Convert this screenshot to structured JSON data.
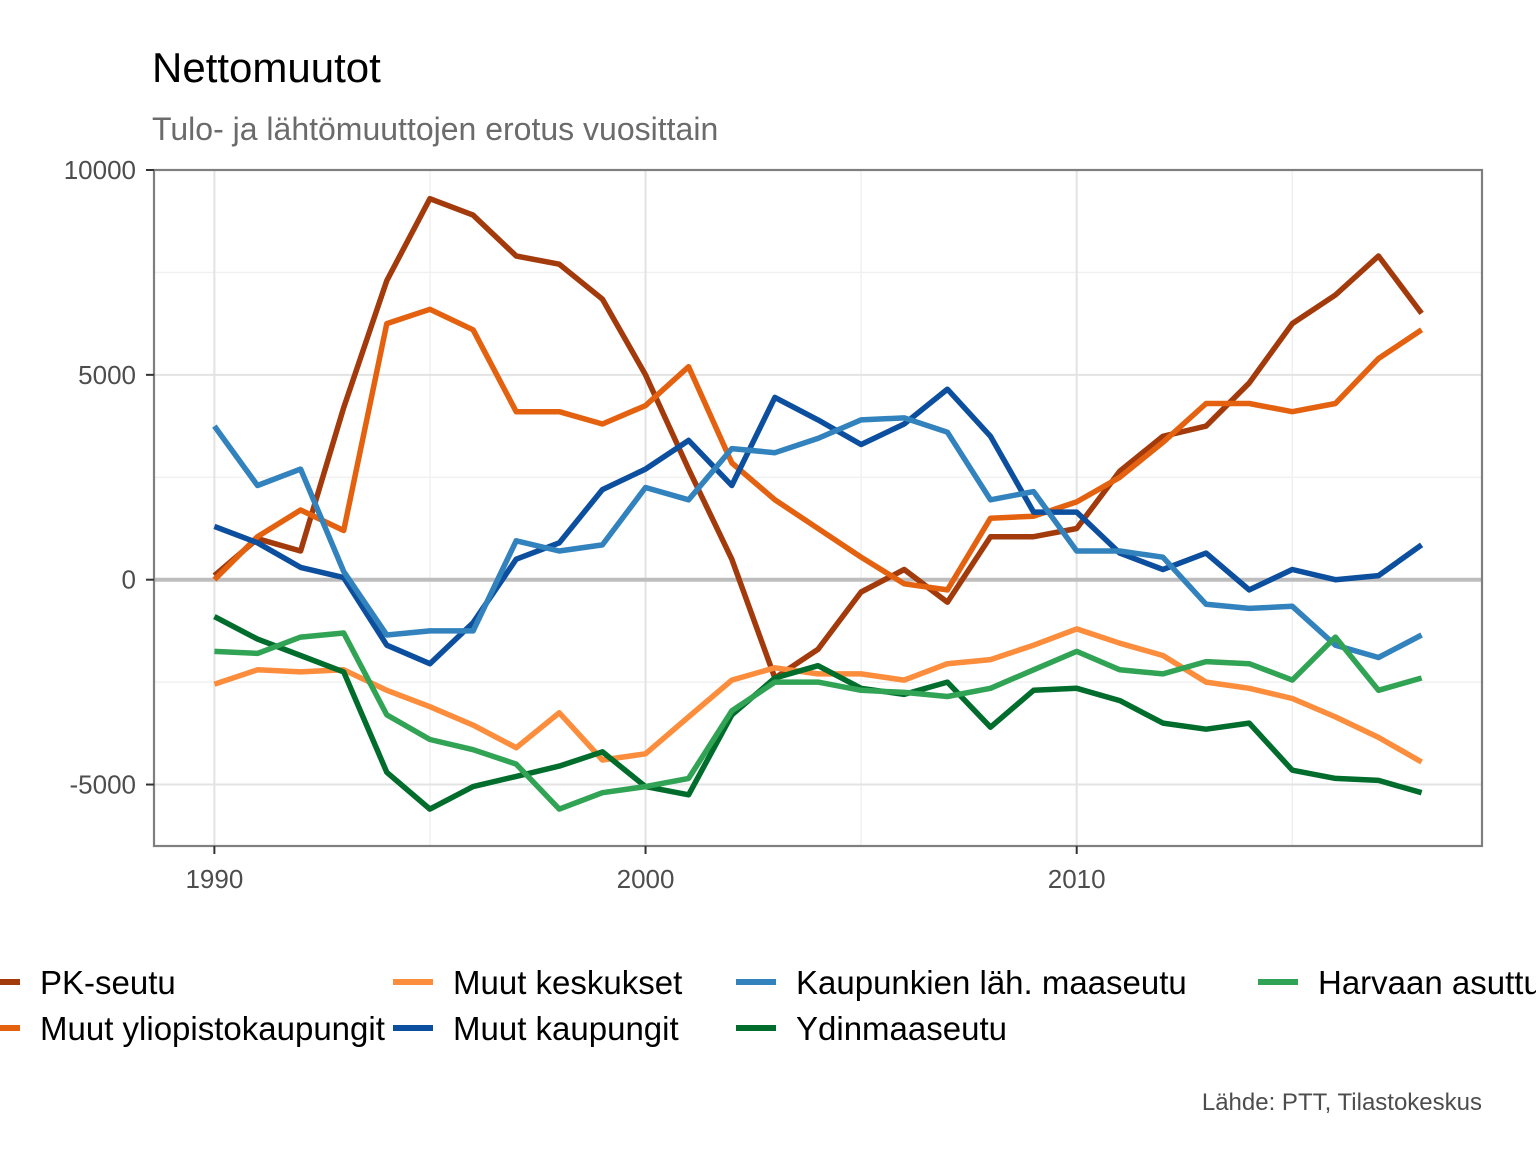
{
  "chart_data": {
    "type": "line",
    "title": "Nettomuutot",
    "subtitle": "Tulo- ja lähtömuuttojen erotus vuosittain",
    "caption": "Lähde: PTT, Tilastokeskus",
    "xlabel": "",
    "ylabel": "",
    "xlim": [
      1988.6,
      2019.4
    ],
    "ylim": [
      -6500,
      10000
    ],
    "x_ticks": [
      1990,
      2000,
      2010
    ],
    "y_ticks": [
      -5000,
      0,
      5000,
      10000
    ],
    "grid": true,
    "legend_position": "bottom",
    "x": [
      1990,
      1991,
      1992,
      1993,
      1994,
      1995,
      1996,
      1997,
      1998,
      1999,
      2000,
      2001,
      2002,
      2003,
      2004,
      2005,
      2006,
      2007,
      2008,
      2009,
      2010,
      2011,
      2012,
      2013,
      2014,
      2015,
      2016,
      2017,
      2018
    ],
    "series": [
      {
        "name": "PK-seutu",
        "color": "#a33a0c",
        "values": [
          100,
          1000,
          700,
          4200,
          7300,
          9300,
          8900,
          7900,
          7700,
          6850,
          5000,
          2700,
          500,
          -2400,
          -1700,
          -300,
          250,
          -550,
          1050,
          1050,
          1250,
          2650,
          3500,
          3750,
          4800,
          6250,
          6950,
          7900,
          6500
        ]
      },
      {
        "name": "Muut yliopistokaupungit",
        "color": "#e4620f",
        "values": [
          0,
          1050,
          1700,
          1200,
          6250,
          6600,
          6100,
          4100,
          4100,
          3800,
          4250,
          5200,
          2850,
          1950,
          1250,
          550,
          -100,
          -250,
          1500,
          1550,
          1900,
          2500,
          3350,
          4300,
          4300,
          4100,
          4300,
          5400,
          6100
        ]
      },
      {
        "name": "Muut keskukset",
        "color": "#fc8d3c",
        "values": [
          -2550,
          -2200,
          -2250,
          -2200,
          -2700,
          -3100,
          -3550,
          -4100,
          -3250,
          -4400,
          -4250,
          -3350,
          -2450,
          -2150,
          -2300,
          -2300,
          -2450,
          -2050,
          -1950,
          -1600,
          -1200,
          -1550,
          -1850,
          -2500,
          -2650,
          -2900,
          -3350,
          -3850,
          -4450
        ]
      },
      {
        "name": "Muut kaupungit",
        "color": "#0c4f9e",
        "values": [
          1300,
          900,
          300,
          50,
          -1600,
          -2050,
          -1050,
          500,
          900,
          2200,
          2700,
          3400,
          2300,
          4450,
          3900,
          3300,
          3800,
          4650,
          3500,
          1650,
          1650,
          650,
          250,
          650,
          -250,
          250,
          0,
          100,
          850
        ]
      },
      {
        "name": "Kaupunkien läh. maaseutu",
        "color": "#3182bd",
        "values": [
          3750,
          2300,
          2700,
          200,
          -1350,
          -1250,
          -1250,
          950,
          700,
          850,
          2250,
          1950,
          3200,
          3100,
          3450,
          3900,
          3950,
          3600,
          1950,
          2150,
          700,
          700,
          550,
          -600,
          -700,
          -650,
          -1600,
          -1900,
          -1350
        ]
      },
      {
        "name": "Ydinmaaseutu",
        "color": "#006d2c",
        "values": [
          -900,
          -1450,
          -1850,
          -2250,
          -4700,
          -5600,
          -5050,
          -4800,
          -4550,
          -4200,
          -5050,
          -5250,
          -3300,
          -2400,
          -2100,
          -2650,
          -2800,
          -2500,
          -3600,
          -2700,
          -2650,
          -2950,
          -3500,
          -3650,
          -3500,
          -4650,
          -4850,
          -4900,
          -5200
        ]
      },
      {
        "name": "Harvaan asuttu maaseutu",
        "color": "#31a354",
        "values": [
          -1750,
          -1800,
          -1400,
          -1300,
          -3300,
          -3900,
          -4150,
          -4500,
          -5600,
          -5200,
          -5050,
          -4850,
          -3200,
          -2500,
          -2500,
          -2700,
          -2750,
          -2850,
          -2650,
          -2200,
          -1750,
          -2200,
          -2300,
          -2000,
          -2050,
          -2450,
          -1400,
          -2700,
          -2400
        ]
      }
    ]
  }
}
